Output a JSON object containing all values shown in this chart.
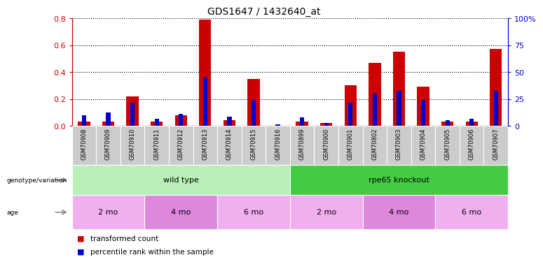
{
  "title": "GDS1647 / 1432640_at",
  "samples": [
    "GSM70908",
    "GSM70909",
    "GSM70910",
    "GSM70911",
    "GSM70912",
    "GSM70913",
    "GSM70914",
    "GSM70915",
    "GSM70916",
    "GSM70899",
    "GSM70900",
    "GSM70901",
    "GSM70802",
    "GSM70903",
    "GSM70904",
    "GSM70905",
    "GSM70906",
    "GSM70907"
  ],
  "red_values": [
    0.03,
    0.03,
    0.22,
    0.03,
    0.08,
    0.79,
    0.04,
    0.35,
    0.0,
    0.03,
    0.02,
    0.3,
    0.47,
    0.55,
    0.29,
    0.03,
    0.03,
    0.57
  ],
  "blue_values": [
    0.08,
    0.1,
    0.17,
    0.05,
    0.09,
    0.36,
    0.07,
    0.19,
    0.01,
    0.06,
    0.02,
    0.17,
    0.24,
    0.26,
    0.19,
    0.04,
    0.05,
    0.26
  ],
  "ylim_left": [
    0,
    0.8
  ],
  "ylim_right": [
    0,
    100
  ],
  "yticks_left": [
    0.0,
    0.2,
    0.4,
    0.6,
    0.8
  ],
  "yticks_right": [
    0,
    25,
    50,
    75,
    100
  ],
  "ytick_labels_right": [
    "0",
    "25",
    "50",
    "75",
    "100%"
  ],
  "red_color": "#cc0000",
  "blue_color": "#0000cc",
  "red_bar_width": 0.5,
  "blue_bar_width": 0.18,
  "genotype_groups": [
    {
      "label": "wild type",
      "start": 0,
      "end": 8,
      "color": "#b8f0b8"
    },
    {
      "label": "rpe65 knockout",
      "start": 9,
      "end": 17,
      "color": "#44cc44"
    }
  ],
  "age_groups": [
    {
      "label": "2 mo",
      "start": 0,
      "end": 2,
      "color": "#f0b0f0"
    },
    {
      "label": "4 mo",
      "start": 3,
      "end": 5,
      "color": "#dd88dd"
    },
    {
      "label": "6 mo",
      "start": 6,
      "end": 8,
      "color": "#f0b0f0"
    },
    {
      "label": "2 mo",
      "start": 9,
      "end": 11,
      "color": "#f0b0f0"
    },
    {
      "label": "4 mo",
      "start": 12,
      "end": 14,
      "color": "#dd88dd"
    },
    {
      "label": "6 mo",
      "start": 15,
      "end": 17,
      "color": "#f0b0f0"
    }
  ],
  "legend_items": [
    {
      "label": "transformed count",
      "color": "#cc0000"
    },
    {
      "label": "percentile rank within the sample",
      "color": "#0000cc"
    }
  ],
  "sample_box_color": "#cccccc",
  "background_color": "#ffffff"
}
